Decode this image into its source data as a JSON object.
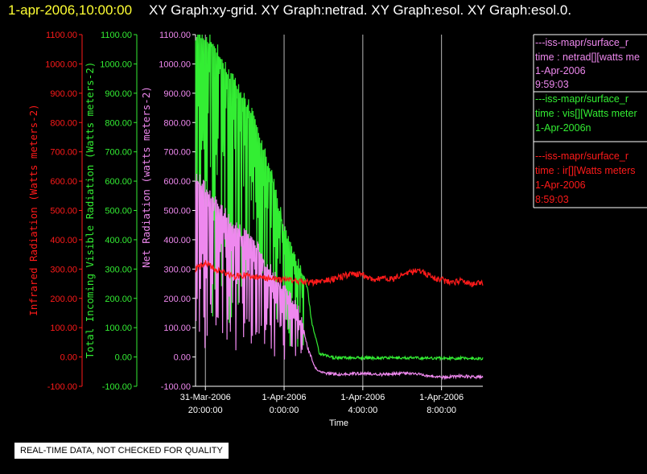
{
  "header": {
    "timestamp": "1-apr-2006,10:00:00",
    "graphs": "XY Graph:xy-grid.  XY Graph:netrad.  XY Graph:esol.  XY Graph:esol.0."
  },
  "colors": {
    "red": "#ff1a1a",
    "green": "#33ee33",
    "violet": "#ee88ee",
    "white": "#ffffff",
    "grid": "#b8b8b8"
  },
  "notice": "REAL-TIME DATA, NOT CHECKED FOR QUALITY",
  "legend": [
    {
      "source": "---iss-mapr/surface_r",
      "variable": "time : netrad[][watts me",
      "date": "1-Apr-2006",
      "time": "9:59:03",
      "color": "#ee88ee"
    },
    {
      "source": "---iss-mapr/surface_r",
      "variable": "time : vis[][Watts meter",
      "date": "1-Apr-2006n",
      "time": "",
      "color": "#33ee33"
    },
    {
      "source": "---iss-mapr/surface_r",
      "variable": "time : ir[][Watts meters",
      "date": "1-Apr-2006",
      "time": "8:59:03",
      "color": "#ff1a1a"
    }
  ],
  "chart_data": {
    "type": "line",
    "xlabel": "Time",
    "x_ticks": [
      {
        "hour": 0,
        "line1": "31-Mar-2006",
        "line2": "20:00:00"
      },
      {
        "hour": 4,
        "line1": "1-Apr-2006",
        "line2": "0:00:00"
      },
      {
        "hour": 8,
        "line1": "1-Apr-2006",
        "line2": "4:00:00"
      },
      {
        "hour": 12,
        "line1": "1-Apr-2006",
        "line2": "8:00:00"
      }
    ],
    "xlim_hours_from_20:00": [
      -0.5,
      14.1
    ],
    "grid_x": true,
    "grid_y": false,
    "y_axes": [
      {
        "label": "Infrared Radiation (Watts meters-2)",
        "color": "#ff1a1a",
        "ticks": [
          "1100.00",
          "1000.00",
          "900.00",
          "800.00",
          "700.00",
          "600.00",
          "500.00",
          "400.00",
          "300.00",
          "200.00",
          "100.00",
          "0.00",
          "-100.00"
        ]
      },
      {
        "label": "Total Incoming Visible Radiation (Watts meters-2)",
        "color": "#33ee33",
        "ticks": [
          "1100.00",
          "1000.00",
          "900.00",
          "800.00",
          "700.00",
          "600.00",
          "500.00",
          "400.00",
          "300.00",
          "200.00",
          "100.00",
          "0.00",
          "-100.00"
        ]
      },
      {
        "label": "Net Radiation (watts meters-2)",
        "color": "#ee88ee",
        "ticks": [
          "1100.00",
          "1000.00",
          "900.00",
          "800.00",
          "700.00",
          "600.00",
          "500.00",
          "400.00",
          "300.00",
          "200.00",
          "100.00",
          "0.00",
          "-100.00"
        ]
      }
    ],
    "ylim": [
      -100,
      1100
    ],
    "series": [
      {
        "name": "vis",
        "color": "#33ee33",
        "x": [
          -0.5,
          -0.1,
          0.3,
          0.7,
          1.1,
          1.5,
          1.9,
          2.3,
          2.7,
          3.0,
          3.3,
          3.6,
          3.9,
          4.2,
          4.5,
          4.8,
          5.0,
          5.2,
          5.4,
          5.8,
          6.5,
          8,
          10,
          12,
          14
        ],
        "y": [
          1100,
          1100,
          1080,
          1040,
          980,
          940,
          890,
          850,
          760,
          700,
          640,
          560,
          470,
          400,
          340,
          310,
          280,
          230,
          120,
          10,
          -2,
          -3,
          -3,
          -4,
          -5
        ],
        "spikes_until_hour": 5.0
      },
      {
        "name": "netrad",
        "color": "#ee88ee",
        "x": [
          -0.5,
          -0.2,
          0.2,
          0.6,
          1.0,
          1.4,
          1.8,
          2.2,
          2.6,
          3.0,
          3.4,
          3.8,
          4.2,
          4.6,
          4.9,
          5.2,
          5.6,
          6.0,
          7,
          8,
          9,
          10,
          11,
          12,
          13,
          14
        ],
        "y": [
          620,
          600,
          560,
          520,
          490,
          460,
          430,
          410,
          380,
          330,
          290,
          250,
          220,
          180,
          120,
          30,
          -40,
          -55,
          -60,
          -55,
          -60,
          -55,
          -60,
          -70,
          -65,
          -70
        ],
        "spikes_until_hour": 5.0
      },
      {
        "name": "ir",
        "color": "#ff1a1a",
        "x": [
          -0.5,
          0.0,
          0.5,
          1.0,
          1.5,
          2.0,
          2.5,
          3.0,
          3.5,
          4.0,
          4.5,
          5.0,
          5.5,
          6.0,
          6.5,
          7.0,
          7.5,
          8.0,
          8.5,
          9.0,
          9.5,
          10.0,
          10.5,
          11.0,
          11.5,
          12.0,
          12.5,
          13.0,
          13.5,
          14.0
        ],
        "y": [
          300,
          320,
          300,
          285,
          275,
          280,
          270,
          270,
          265,
          265,
          262,
          255,
          255,
          260,
          265,
          275,
          285,
          280,
          265,
          270,
          265,
          280,
          290,
          295,
          270,
          265,
          250,
          260,
          250,
          250
        ]
      }
    ]
  }
}
